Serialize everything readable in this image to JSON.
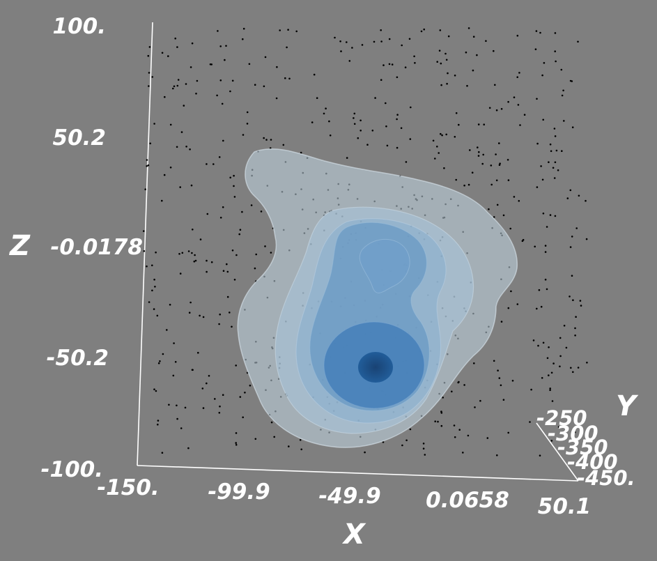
{
  "chart_data": {
    "type": "scatter",
    "subtype": "3d-density-isosurface",
    "title": "",
    "xlabel": "X",
    "ylabel": "Y",
    "zlabel": "Z",
    "x_ticks": [
      "-150.",
      "-99.9",
      "-49.9",
      "0.0658",
      "50.1"
    ],
    "y_ticks": [
      "-250",
      "-300",
      "-350",
      "-400",
      "-450."
    ],
    "z_ticks": [
      "100.",
      "50.2",
      "-0.0178",
      "-50.2",
      "-100."
    ],
    "xlim": [
      -150,
      50.1
    ],
    "ylim": [
      -450,
      -250
    ],
    "zlim": [
      -100,
      100
    ],
    "grid": false,
    "legend": "none",
    "isosurface_levels": 6,
    "colors": {
      "background": "#7f7f7f",
      "axes": "#ffffff",
      "points": "#000000",
      "surface_outer": "#c3d7e4",
      "surface_inner": "#1f5b98"
    }
  }
}
